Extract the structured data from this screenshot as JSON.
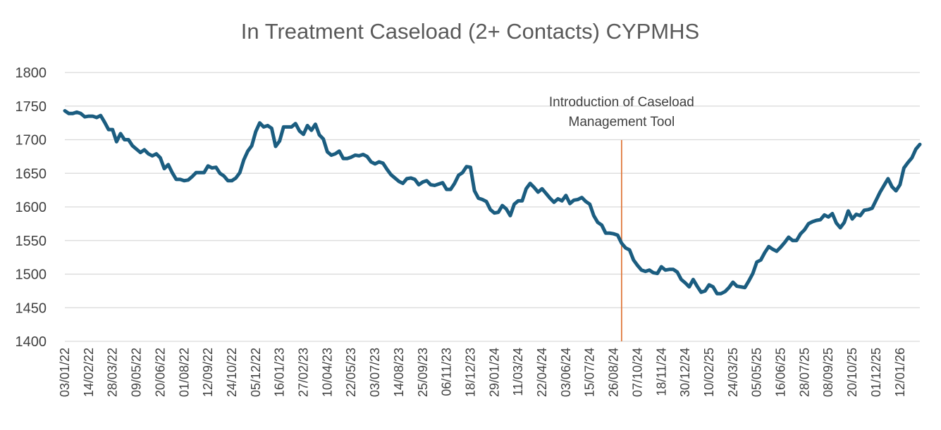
{
  "chart_data": {
    "type": "line",
    "title": "In Treatment Caseload (2+ Contacts) CYPMHS",
    "xlabel": "",
    "ylabel": "",
    "ylim": [
      1400,
      1800
    ],
    "yticks": [
      1400,
      1450,
      1500,
      1550,
      1600,
      1650,
      1700,
      1750,
      1800
    ],
    "grid": "horizontal",
    "legend": "none",
    "line_color": "#1b5d80",
    "annotation_line_color": "#e07a3f",
    "x_tick_labels": [
      "03/01/22",
      "14/02/22",
      "28/03/22",
      "09/05/22",
      "20/06/22",
      "01/08/22",
      "12/09/22",
      "24/10/22",
      "05/12/22",
      "16/01/23",
      "27/02/23",
      "10/04/23",
      "22/05/23",
      "03/07/23",
      "14/08/23",
      "25/09/23",
      "06/11/23",
      "18/12/23",
      "29/01/24",
      "11/03/24",
      "22/04/24",
      "03/06/24",
      "15/07/24",
      "26/08/24",
      "07/10/24",
      "18/11/24",
      "30/12/24",
      "10/02/25",
      "24/03/25",
      "05/05/25",
      "16/06/25",
      "28/07/25",
      "08/09/25",
      "20/10/25",
      "01/12/25",
      "12/01/26"
    ],
    "annotation": {
      "x": "09/09/24",
      "text_lines": [
        "Introduction of Caseload",
        "Management Tool"
      ]
    },
    "series": [
      {
        "x_start": "03/01/22",
        "interval_days": 7,
        "values": [
          1743,
          1739,
          1739,
          1741,
          1739,
          1734,
          1735,
          1735,
          1733,
          1736,
          1726,
          1715,
          1715,
          1697,
          1709,
          1700,
          1700,
          1691,
          1686,
          1681,
          1685,
          1679,
          1676,
          1679,
          1673,
          1657,
          1663,
          1651,
          1641,
          1641,
          1639,
          1640,
          1645,
          1651,
          1651,
          1651,
          1661,
          1658,
          1659,
          1650,
          1646,
          1639,
          1639,
          1643,
          1651,
          1670,
          1683,
          1691,
          1712,
          1725,
          1719,
          1721,
          1717,
          1690,
          1698,
          1719,
          1719,
          1719,
          1724,
          1713,
          1708,
          1721,
          1714,
          1723,
          1707,
          1701,
          1682,
          1677,
          1679,
          1683,
          1672,
          1672,
          1674,
          1677,
          1676,
          1678,
          1675,
          1667,
          1664,
          1667,
          1665,
          1656,
          1648,
          1643,
          1638,
          1635,
          1642,
          1643,
          1641,
          1633,
          1637,
          1639,
          1633,
          1632,
          1634,
          1636,
          1626,
          1626,
          1635,
          1647,
          1651,
          1660,
          1659,
          1624,
          1613,
          1611,
          1608,
          1596,
          1591,
          1592,
          1602,
          1597,
          1587,
          1604,
          1609,
          1609,
          1627,
          1635,
          1629,
          1622,
          1627,
          1620,
          1613,
          1607,
          1612,
          1609,
          1617,
          1605,
          1610,
          1611,
          1614,
          1608,
          1604,
          1587,
          1577,
          1573,
          1561,
          1561,
          1560,
          1558,
          1546,
          1539,
          1536,
          1521,
          1513,
          1506,
          1504,
          1506,
          1502,
          1501,
          1511,
          1506,
          1507,
          1507,
          1503,
          1492,
          1487,
          1481,
          1492,
          1482,
          1473,
          1475,
          1484,
          1481,
          1471,
          1471,
          1474,
          1480,
          1488,
          1482,
          1481,
          1480,
          1490,
          1501,
          1518,
          1521,
          1532,
          1541,
          1537,
          1534,
          1540,
          1547,
          1555,
          1550,
          1550,
          1560,
          1566,
          1575,
          1578,
          1580,
          1581,
          1588,
          1585,
          1590,
          1576,
          1569,
          1577,
          1594,
          1582,
          1589,
          1587,
          1595,
          1596,
          1598,
          1610,
          1622,
          1632,
          1642,
          1630,
          1624,
          1633,
          1658,
          1666,
          1673,
          1686,
          1693
        ]
      }
    ]
  }
}
